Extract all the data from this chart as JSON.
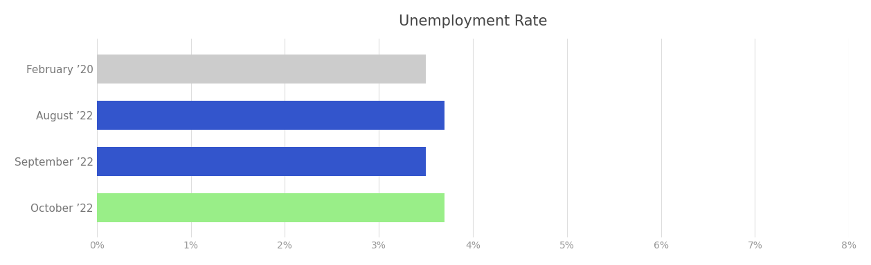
{
  "title": "Unemployment Rate",
  "categories": [
    "February ’20",
    "August ’22",
    "September ’22",
    "October ’22"
  ],
  "values": [
    3.5,
    3.7,
    3.5,
    3.7
  ],
  "bar_colors": [
    "#cccccc",
    "#3355cc",
    "#3355cc",
    "#99ee88"
  ],
  "xlim": [
    0,
    0.08
  ],
  "xticks": [
    0,
    0.01,
    0.02,
    0.03,
    0.04,
    0.05,
    0.06,
    0.07,
    0.08
  ],
  "xtick_labels": [
    "0%",
    "1%",
    "2%",
    "3%",
    "4%",
    "5%",
    "6%",
    "7%",
    "8%"
  ],
  "title_color": "#444444",
  "title_fontsize": 15,
  "ylabel_fontsize": 11,
  "xlabel_fontsize": 10,
  "background_color": "#ffffff",
  "grid_color": "#dddddd",
  "bar_height": 0.62
}
